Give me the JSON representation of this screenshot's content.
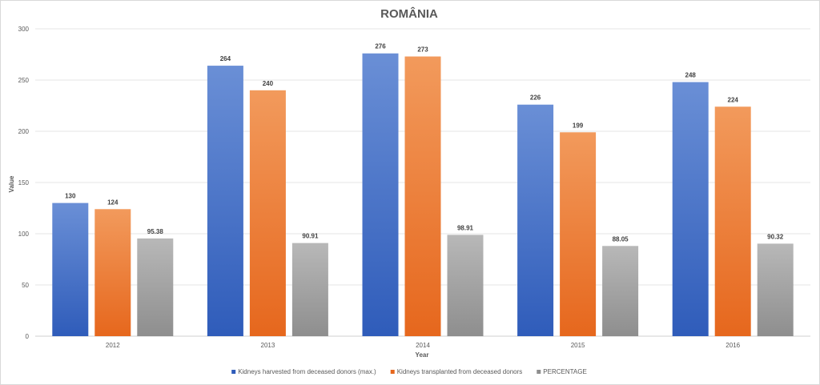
{
  "chart_data": {
    "type": "bar",
    "title": "ROMÂNIA",
    "xlabel": "Year",
    "ylabel": "Value",
    "categories": [
      "2012",
      "2013",
      "2014",
      "2015",
      "2016"
    ],
    "ylim": [
      0,
      300
    ],
    "yticks": [
      0,
      50,
      100,
      150,
      200,
      250,
      300
    ],
    "grid": true,
    "legend_position": "bottom",
    "series": [
      {
        "name": "Kidneys harvested from deceased donors (max.)",
        "values": [
          130,
          264,
          276,
          226,
          248
        ],
        "labels": [
          "130",
          "264",
          "276",
          "226",
          "248"
        ],
        "color_top": "#6a8fd6",
        "color_bottom": "#2f5cba"
      },
      {
        "name": "Kidneys transplanted from deceased donors",
        "values": [
          124,
          240,
          273,
          199,
          224
        ],
        "labels": [
          "124",
          "240",
          "273",
          "199",
          "224"
        ],
        "color_top": "#f29a5c",
        "color_bottom": "#e6671d"
      },
      {
        "name": "PERCENTAGE",
        "values": [
          95.38,
          90.91,
          98.91,
          88.05,
          90.32
        ],
        "labels": [
          "95.38",
          "90.91",
          "98.91",
          "88.05",
          "90.32"
        ],
        "color_top": "#b8b8b8",
        "color_bottom": "#8e8e8e"
      }
    ]
  }
}
